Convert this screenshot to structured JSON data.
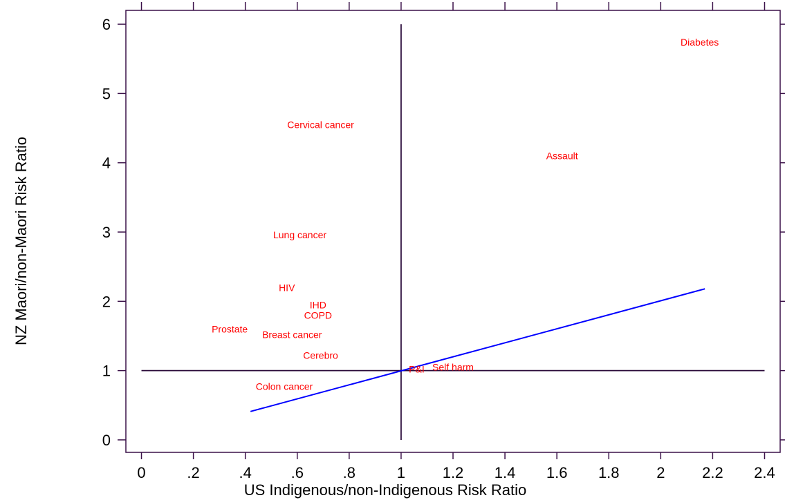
{
  "chart_data": {
    "type": "scatter",
    "xlabel": "US Indigenous/non-Indigenous Risk Ratio",
    "ylabel": "NZ Maori/non-Maori Risk Ratio",
    "xlim": [
      -0.06,
      2.46
    ],
    "ylim": [
      -0.18,
      6.2
    ],
    "x_ticks": [
      {
        "value": 0,
        "label": "0"
      },
      {
        "value": 0.2,
        "label": ".2"
      },
      {
        "value": 0.4,
        "label": ".4"
      },
      {
        "value": 0.6,
        "label": ".6"
      },
      {
        "value": 0.8,
        "label": ".8"
      },
      {
        "value": 1.0,
        "label": "1"
      },
      {
        "value": 1.2,
        "label": "1.2"
      },
      {
        "value": 1.4,
        "label": "1.4"
      },
      {
        "value": 1.6,
        "label": "1.6"
      },
      {
        "value": 1.8,
        "label": "1.8"
      },
      {
        "value": 2.0,
        "label": "2"
      },
      {
        "value": 2.2,
        "label": "2.2"
      },
      {
        "value": 2.4,
        "label": "2.4"
      }
    ],
    "y_ticks": [
      {
        "value": 0,
        "label": "0"
      },
      {
        "value": 1,
        "label": "1"
      },
      {
        "value": 2,
        "label": "2"
      },
      {
        "value": 3,
        "label": "3"
      },
      {
        "value": 4,
        "label": "4"
      },
      {
        "value": 5,
        "label": "5"
      },
      {
        "value": 6,
        "label": "6"
      }
    ],
    "grid": false,
    "point_color": "#ff0000",
    "points": [
      {
        "label": "Diabetes",
        "x": 2.15,
        "y": 5.74
      },
      {
        "label": "Cervical cancer",
        "x": 0.69,
        "y": 4.55
      },
      {
        "label": "Assault",
        "x": 1.62,
        "y": 4.1
      },
      {
        "label": "Lung cancer",
        "x": 0.61,
        "y": 2.96
      },
      {
        "label": "HIV",
        "x": 0.56,
        "y": 2.2
      },
      {
        "label": "IHD",
        "x": 0.68,
        "y": 1.95
      },
      {
        "label": "COPD",
        "x": 0.68,
        "y": 1.8
      },
      {
        "label": "Prostate",
        "x": 0.34,
        "y": 1.6
      },
      {
        "label": "Breast cancer",
        "x": 0.58,
        "y": 1.52
      },
      {
        "label": "Cerebro",
        "x": 0.69,
        "y": 1.22
      },
      {
        "label": "P&I",
        "x": 1.06,
        "y": 1.02
      },
      {
        "label": "Self harm",
        "x": 1.2,
        "y": 1.05
      },
      {
        "label": "Colon cancer",
        "x": 0.55,
        "y": 0.77
      }
    ],
    "reference_lines": [
      {
        "type": "horizontal",
        "y": 1,
        "x_from": 0,
        "x_to": 2.4,
        "color": "#2a0a3a"
      },
      {
        "type": "vertical",
        "x": 1,
        "y_from": 0,
        "y_to": 6,
        "color": "#2a0a3a"
      }
    ],
    "fit_line": {
      "x": [
        0.42,
        2.17
      ],
      "y": [
        0.41,
        2.18
      ],
      "color": "#0000ff"
    },
    "axis_color": "#3a1048"
  }
}
